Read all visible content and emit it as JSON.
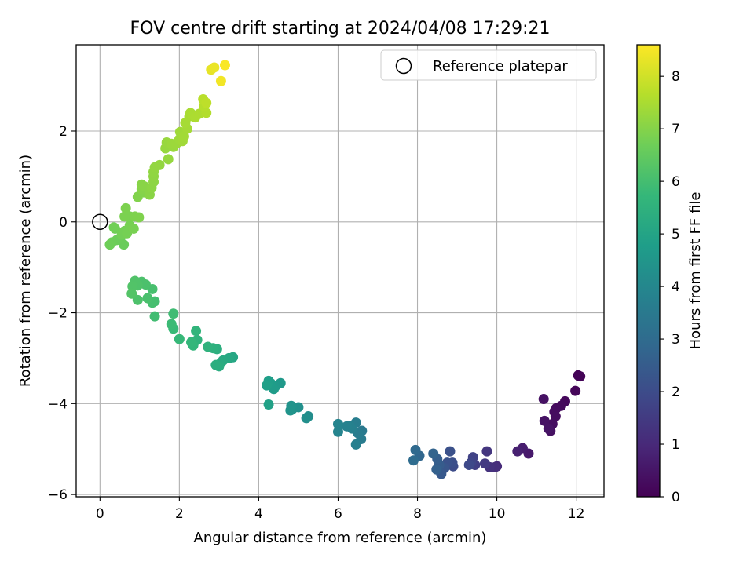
{
  "chart_data": {
    "type": "scatter",
    "title": "FOV centre drift starting at 2024/04/08 17:29:21",
    "xlabel": "Angular distance from reference (arcmin)",
    "ylabel": "Rotation from reference (arcmin)",
    "colorbar_label": "Hours from first FF file",
    "xlim": [
      -0.6,
      12.7
    ],
    "ylim": [
      -6.05,
      3.9
    ],
    "clim": [
      0,
      8.6
    ],
    "xticks": [
      0,
      2,
      4,
      6,
      8,
      10,
      12
    ],
    "yticks": [
      -6,
      -4,
      -2,
      0,
      2
    ],
    "cticks": [
      0,
      1,
      2,
      3,
      4,
      5,
      6,
      7,
      8
    ],
    "grid": true,
    "legend": {
      "position": "top-right",
      "entries": [
        "Reference platepar"
      ]
    },
    "reference_point": {
      "x": 0,
      "y": 0
    },
    "colormap": [
      "#440154",
      "#482878",
      "#3e4989",
      "#31688e",
      "#26828e",
      "#1f9e89",
      "#35b779",
      "#6ece58",
      "#b5de2b",
      "#fde725"
    ],
    "points": [
      {
        "x": 12.05,
        "y": -3.38,
        "h": 0.05
      },
      {
        "x": 12.1,
        "y": -3.4,
        "h": 0.08
      },
      {
        "x": 11.98,
        "y": -3.72,
        "h": 0.12
      },
      {
        "x": 11.72,
        "y": -3.95,
        "h": 0.18
      },
      {
        "x": 11.62,
        "y": -4.05,
        "h": 0.22
      },
      {
        "x": 11.5,
        "y": -4.1,
        "h": 0.25
      },
      {
        "x": 11.45,
        "y": -4.18,
        "h": 0.28
      },
      {
        "x": 11.48,
        "y": -4.28,
        "h": 0.3
      },
      {
        "x": 11.4,
        "y": -4.45,
        "h": 0.33
      },
      {
        "x": 11.35,
        "y": -4.6,
        "h": 0.36
      },
      {
        "x": 11.18,
        "y": -3.9,
        "h": 0.4
      },
      {
        "x": 11.2,
        "y": -4.38,
        "h": 0.43
      },
      {
        "x": 11.3,
        "y": -4.55,
        "h": 0.46
      },
      {
        "x": 10.8,
        "y": -5.1,
        "h": 0.6
      },
      {
        "x": 10.65,
        "y": -4.98,
        "h": 0.68
      },
      {
        "x": 10.52,
        "y": -5.05,
        "h": 0.78
      },
      {
        "x": 10.0,
        "y": -5.38,
        "h": 1.05
      },
      {
        "x": 9.95,
        "y": -5.4,
        "h": 1.15
      },
      {
        "x": 9.82,
        "y": -5.4,
        "h": 1.25
      },
      {
        "x": 9.75,
        "y": -5.05,
        "h": 1.35
      },
      {
        "x": 9.7,
        "y": -5.32,
        "h": 1.45
      },
      {
        "x": 9.45,
        "y": -5.35,
        "h": 1.6
      },
      {
        "x": 9.4,
        "y": -5.18,
        "h": 1.7
      },
      {
        "x": 9.35,
        "y": -5.3,
        "h": 1.8
      },
      {
        "x": 9.3,
        "y": -5.35,
        "h": 1.9
      },
      {
        "x": 8.9,
        "y": -5.38,
        "h": 2.0
      },
      {
        "x": 8.88,
        "y": -5.3,
        "h": 2.1
      },
      {
        "x": 8.82,
        "y": -5.05,
        "h": 2.15
      },
      {
        "x": 8.75,
        "y": -5.3,
        "h": 2.2
      },
      {
        "x": 8.68,
        "y": -5.42,
        "h": 2.3
      },
      {
        "x": 8.6,
        "y": -5.55,
        "h": 2.4
      },
      {
        "x": 8.55,
        "y": -5.35,
        "h": 2.5
      },
      {
        "x": 8.5,
        "y": -5.22,
        "h": 2.6
      },
      {
        "x": 8.48,
        "y": -5.45,
        "h": 2.65
      },
      {
        "x": 8.4,
        "y": -5.1,
        "h": 2.75
      },
      {
        "x": 8.05,
        "y": -5.15,
        "h": 2.85
      },
      {
        "x": 7.95,
        "y": -5.02,
        "h": 2.95
      },
      {
        "x": 7.9,
        "y": -5.25,
        "h": 3.0
      },
      {
        "x": 6.6,
        "y": -4.6,
        "h": 3.5
      },
      {
        "x": 6.58,
        "y": -4.78,
        "h": 3.55
      },
      {
        "x": 6.5,
        "y": -4.65,
        "h": 3.6
      },
      {
        "x": 6.45,
        "y": -4.42,
        "h": 3.65
      },
      {
        "x": 6.45,
        "y": -4.9,
        "h": 3.7
      },
      {
        "x": 6.35,
        "y": -4.55,
        "h": 3.75
      },
      {
        "x": 6.3,
        "y": -4.5,
        "h": 3.8
      },
      {
        "x": 6.22,
        "y": -4.5,
        "h": 3.82
      },
      {
        "x": 6.0,
        "y": -4.62,
        "h": 3.88
      },
      {
        "x": 6.0,
        "y": -4.45,
        "h": 3.9
      },
      {
        "x": 5.25,
        "y": -4.28,
        "h": 4.2
      },
      {
        "x": 5.2,
        "y": -4.32,
        "h": 4.25
      },
      {
        "x": 5.0,
        "y": -4.08,
        "h": 4.3
      },
      {
        "x": 4.85,
        "y": -4.12,
        "h": 4.35
      },
      {
        "x": 4.82,
        "y": -4.05,
        "h": 4.4
      },
      {
        "x": 4.8,
        "y": -4.15,
        "h": 4.45
      },
      {
        "x": 4.55,
        "y": -3.55,
        "h": 4.6
      },
      {
        "x": 4.42,
        "y": -3.62,
        "h": 4.65
      },
      {
        "x": 4.38,
        "y": -3.68,
        "h": 4.7
      },
      {
        "x": 4.3,
        "y": -3.55,
        "h": 4.75
      },
      {
        "x": 4.25,
        "y": -3.5,
        "h": 4.8
      },
      {
        "x": 4.2,
        "y": -3.6,
        "h": 4.85
      },
      {
        "x": 4.25,
        "y": -4.02,
        "h": 4.9
      },
      {
        "x": 3.35,
        "y": -2.98,
        "h": 5.1
      },
      {
        "x": 3.25,
        "y": -3.0,
        "h": 5.15
      },
      {
        "x": 3.1,
        "y": -3.05,
        "h": 5.2
      },
      {
        "x": 3.05,
        "y": -3.1,
        "h": 5.25
      },
      {
        "x": 3.0,
        "y": -3.18,
        "h": 5.3
      },
      {
        "x": 2.92,
        "y": -3.15,
        "h": 5.35
      },
      {
        "x": 2.95,
        "y": -2.8,
        "h": 5.4
      },
      {
        "x": 2.85,
        "y": -2.78,
        "h": 5.45
      },
      {
        "x": 2.72,
        "y": -2.75,
        "h": 5.5
      },
      {
        "x": 2.45,
        "y": -2.6,
        "h": 5.55
      },
      {
        "x": 2.42,
        "y": -2.4,
        "h": 5.6
      },
      {
        "x": 2.35,
        "y": -2.72,
        "h": 5.65
      },
      {
        "x": 2.3,
        "y": -2.65,
        "h": 5.7
      },
      {
        "x": 2.0,
        "y": -2.58,
        "h": 5.75
      },
      {
        "x": 1.85,
        "y": -2.35,
        "h": 5.8
      },
      {
        "x": 1.8,
        "y": -2.25,
        "h": 5.85
      },
      {
        "x": 1.85,
        "y": -2.02,
        "h": 5.9
      },
      {
        "x": 1.38,
        "y": -2.08,
        "h": 5.95
      },
      {
        "x": 1.38,
        "y": -1.75,
        "h": 6.0
      },
      {
        "x": 1.32,
        "y": -1.78,
        "h": 6.02
      },
      {
        "x": 1.32,
        "y": -1.48,
        "h": 6.05
      },
      {
        "x": 1.2,
        "y": -1.68,
        "h": 6.08
      },
      {
        "x": 1.15,
        "y": -1.38,
        "h": 6.1
      },
      {
        "x": 1.05,
        "y": -1.32,
        "h": 6.12
      },
      {
        "x": 0.95,
        "y": -1.72,
        "h": 6.15
      },
      {
        "x": 0.95,
        "y": -1.4,
        "h": 6.18
      },
      {
        "x": 0.88,
        "y": -1.3,
        "h": 6.2
      },
      {
        "x": 0.82,
        "y": -1.42,
        "h": 6.22
      },
      {
        "x": 0.8,
        "y": -1.58,
        "h": 6.25
      },
      {
        "x": 0.6,
        "y": -0.5,
        "h": 6.6
      },
      {
        "x": 0.5,
        "y": -0.38,
        "h": 6.62
      },
      {
        "x": 0.42,
        "y": -0.4,
        "h": 6.64
      },
      {
        "x": 0.3,
        "y": -0.45,
        "h": 6.66
      },
      {
        "x": 0.25,
        "y": -0.5,
        "h": 6.68
      },
      {
        "x": 0.38,
        "y": -0.15,
        "h": 6.7
      },
      {
        "x": 0.35,
        "y": -0.12,
        "h": 6.72
      },
      {
        "x": 0.55,
        "y": -0.28,
        "h": 6.74
      },
      {
        "x": 0.62,
        "y": -0.2,
        "h": 6.76
      },
      {
        "x": 0.68,
        "y": -0.25,
        "h": 6.78
      },
      {
        "x": 0.75,
        "y": -0.08,
        "h": 6.8
      },
      {
        "x": 0.85,
        "y": -0.15,
        "h": 6.82
      },
      {
        "x": 0.75,
        "y": 0.12,
        "h": 6.84
      },
      {
        "x": 0.62,
        "y": 0.12,
        "h": 6.86
      },
      {
        "x": 0.65,
        "y": 0.3,
        "h": 6.88
      },
      {
        "x": 0.88,
        "y": 0.12,
        "h": 6.9
      },
      {
        "x": 0.98,
        "y": 0.1,
        "h": 6.92
      },
      {
        "x": 0.95,
        "y": 0.55,
        "h": 6.95
      },
      {
        "x": 1.1,
        "y": 0.65,
        "h": 6.97
      },
      {
        "x": 1.2,
        "y": 0.7,
        "h": 6.99
      },
      {
        "x": 1.05,
        "y": 0.72,
        "h": 7.01
      },
      {
        "x": 1.05,
        "y": 0.82,
        "h": 7.03
      },
      {
        "x": 1.12,
        "y": 0.78,
        "h": 7.05
      },
      {
        "x": 1.25,
        "y": 0.6,
        "h": 7.07
      },
      {
        "x": 1.3,
        "y": 0.75,
        "h": 7.09
      },
      {
        "x": 1.35,
        "y": 0.88,
        "h": 7.11
      },
      {
        "x": 1.35,
        "y": 1.0,
        "h": 7.13
      },
      {
        "x": 1.35,
        "y": 1.1,
        "h": 7.15
      },
      {
        "x": 1.38,
        "y": 1.2,
        "h": 7.17
      },
      {
        "x": 1.5,
        "y": 1.25,
        "h": 7.19
      },
      {
        "x": 1.72,
        "y": 1.38,
        "h": 7.21
      },
      {
        "x": 1.65,
        "y": 1.62,
        "h": 7.23
      },
      {
        "x": 1.68,
        "y": 1.75,
        "h": 7.25
      },
      {
        "x": 1.85,
        "y": 1.65,
        "h": 7.27
      },
      {
        "x": 1.8,
        "y": 1.72,
        "h": 7.29
      },
      {
        "x": 1.92,
        "y": 1.72,
        "h": 7.31
      },
      {
        "x": 2.0,
        "y": 1.82,
        "h": 7.33
      },
      {
        "x": 2.02,
        "y": 1.98,
        "h": 7.35
      },
      {
        "x": 2.08,
        "y": 1.78,
        "h": 7.37
      },
      {
        "x": 2.12,
        "y": 1.88,
        "h": 7.39
      },
      {
        "x": 2.2,
        "y": 2.05,
        "h": 7.42
      },
      {
        "x": 2.15,
        "y": 2.18,
        "h": 7.44
      },
      {
        "x": 2.25,
        "y": 2.32,
        "h": 7.46
      },
      {
        "x": 2.28,
        "y": 2.4,
        "h": 7.48
      },
      {
        "x": 2.35,
        "y": 2.35,
        "h": 7.5
      },
      {
        "x": 2.4,
        "y": 2.3,
        "h": 7.52
      },
      {
        "x": 2.5,
        "y": 2.38,
        "h": 7.54
      },
      {
        "x": 2.68,
        "y": 2.4,
        "h": 7.6
      },
      {
        "x": 2.62,
        "y": 2.55,
        "h": 7.65
      },
      {
        "x": 2.6,
        "y": 2.7,
        "h": 7.7
      },
      {
        "x": 2.68,
        "y": 2.62,
        "h": 7.75
      },
      {
        "x": 2.8,
        "y": 3.35,
        "h": 8.3
      },
      {
        "x": 2.88,
        "y": 3.4,
        "h": 8.35
      },
      {
        "x": 3.05,
        "y": 3.1,
        "h": 8.45
      },
      {
        "x": 3.15,
        "y": 3.45,
        "h": 8.55
      }
    ]
  }
}
